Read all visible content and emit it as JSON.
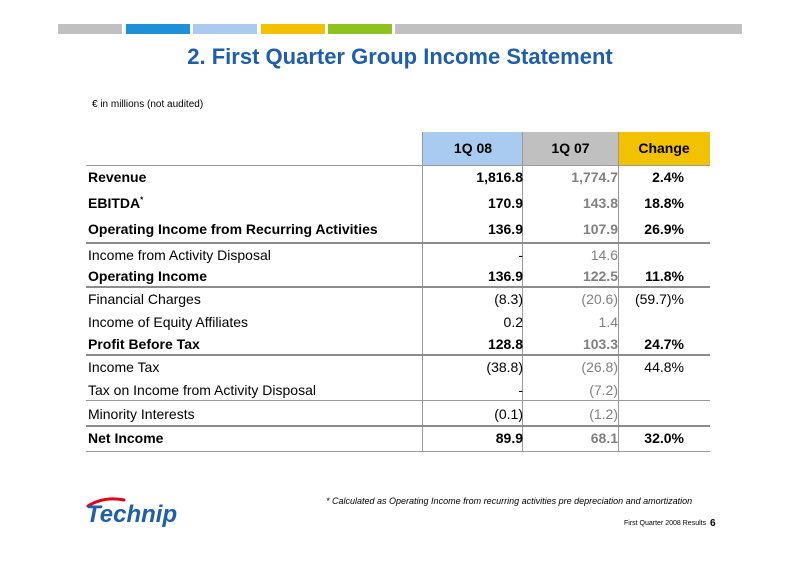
{
  "header": {
    "bar_colors": [
      "#c0c0c0",
      "#1e90d8",
      "#a9cbf0",
      "#f2c200",
      "#8dc21f",
      "#c0c0c0"
    ],
    "title": "2.  First Quarter Group Income Statement"
  },
  "unit_note": "€ in millions (not audited)",
  "table": {
    "headers": {
      "c1": "1Q 08",
      "c2": "1Q 07",
      "c3": "Change"
    },
    "header_colors": {
      "c1": "#a9cbf0",
      "c2": "#c0c0c0",
      "c3": "#f2c200"
    },
    "rows": [
      {
        "label": "Revenue",
        "c1": "1,816.8",
        "c2": "1,774.7",
        "c3": "2.4%"
      },
      {
        "label": "EBITDA",
        "sup": "*",
        "c1": "170.9",
        "c2": "143.8",
        "c3": "18.8%"
      },
      {
        "label": "Operating Income from Recurring Activities",
        "c1": "136.9",
        "c2": "107.9",
        "c3": "26.9%"
      },
      {
        "label": "Income from Activity Disposal",
        "c1": "-",
        "c2": "14.6",
        "c3": ""
      },
      {
        "label": "Operating Income",
        "c1": "136.9",
        "c2": "122.5",
        "c3": "11.8%"
      },
      {
        "label": "Financial Charges",
        "c1": "(8.3)",
        "c2": "(20.6)",
        "c3": "(59.7)%"
      },
      {
        "label": "Income of Equity Affiliates",
        "c1": "0.2",
        "c2": "1.4",
        "c3": ""
      },
      {
        "label": "Profit Before Tax",
        "c1": "128.8",
        "c2": "103.3",
        "c3": "24.7%"
      },
      {
        "label": "Income Tax",
        "c1": "(38.8)",
        "c2": "(26.8)",
        "c3": "44.8%"
      },
      {
        "label": "Tax on Income from Activity Disposal",
        "c1": "-",
        "c2": "(7.2)",
        "c3": ""
      },
      {
        "label": "Minority Interests",
        "c1": "(0.1)",
        "c2": "(1.2)",
        "c3": ""
      },
      {
        "label": "Net Income",
        "c1": "89.9",
        "c2": "68.1",
        "c3": "32.0%"
      }
    ]
  },
  "footnote": "* Calculated as Operating Income from recurring activities pre depreciation and amortization",
  "logo": {
    "text": "Technip",
    "icon": "technip-logo-icon",
    "color": "#1f5ea8",
    "accent": "#e2001a"
  },
  "footer": {
    "text": "First Quarter 2008 Results",
    "page": "6"
  }
}
